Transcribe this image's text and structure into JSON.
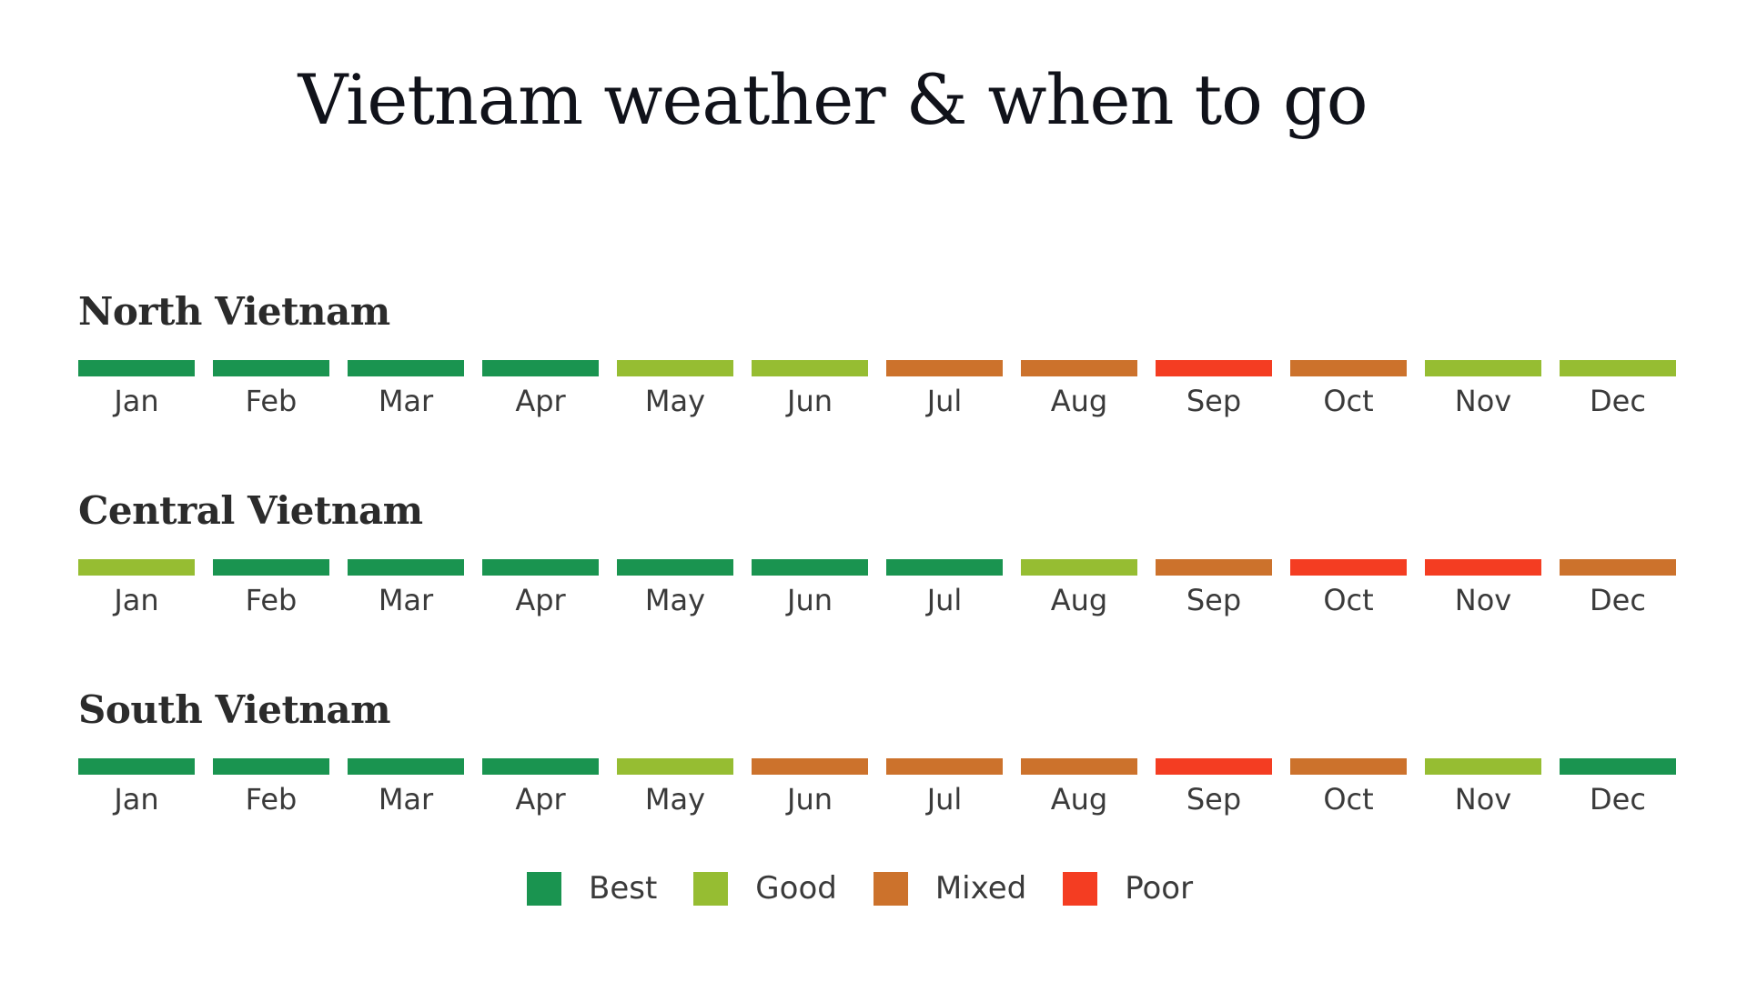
{
  "title": "Vietnam weather & when to go",
  "legend": [
    {
      "key": "best",
      "label": "Best",
      "color": "#1a9450"
    },
    {
      "key": "good",
      "label": "Good",
      "color": "#96bd32"
    },
    {
      "key": "mixed",
      "label": "Mixed",
      "color": "#cc722c"
    },
    {
      "key": "poor",
      "label": "Poor",
      "color": "#f43d22"
    }
  ],
  "colors": {
    "best": "#1a9450",
    "good": "#96bd32",
    "mixed": "#cc722c",
    "poor": "#f43d22"
  },
  "months": [
    "Jan",
    "Feb",
    "Mar",
    "Apr",
    "May",
    "Jun",
    "Jul",
    "Aug",
    "Sep",
    "Oct",
    "Nov",
    "Dec"
  ],
  "regions": [
    {
      "name": "North Vietnam",
      "ratings": [
        "best",
        "best",
        "best",
        "best",
        "good",
        "good",
        "mixed",
        "mixed",
        "poor",
        "mixed",
        "good",
        "good"
      ]
    },
    {
      "name": "Central Vietnam",
      "ratings": [
        "good",
        "best",
        "best",
        "best",
        "best",
        "best",
        "best",
        "good",
        "mixed",
        "poor",
        "poor",
        "mixed"
      ]
    },
    {
      "name": "South Vietnam",
      "ratings": [
        "best",
        "best",
        "best",
        "best",
        "good",
        "mixed",
        "mixed",
        "mixed",
        "poor",
        "mixed",
        "good",
        "best"
      ]
    }
  ],
  "chart_data": {
    "type": "heatmap",
    "title": "Vietnam weather & when to go",
    "x": [
      "Jan",
      "Feb",
      "Mar",
      "Apr",
      "May",
      "Jun",
      "Jul",
      "Aug",
      "Sep",
      "Oct",
      "Nov",
      "Dec"
    ],
    "y": [
      "North Vietnam",
      "Central Vietnam",
      "South Vietnam"
    ],
    "categories_scale": [
      "Best",
      "Good",
      "Mixed",
      "Poor"
    ],
    "values": [
      [
        "Best",
        "Best",
        "Best",
        "Best",
        "Good",
        "Good",
        "Mixed",
        "Mixed",
        "Poor",
        "Mixed",
        "Good",
        "Good"
      ],
      [
        "Good",
        "Best",
        "Best",
        "Best",
        "Best",
        "Best",
        "Best",
        "Good",
        "Mixed",
        "Poor",
        "Poor",
        "Mixed"
      ],
      [
        "Best",
        "Best",
        "Best",
        "Best",
        "Good",
        "Mixed",
        "Mixed",
        "Mixed",
        "Poor",
        "Mixed",
        "Good",
        "Best"
      ]
    ],
    "legend": [
      "Best",
      "Good",
      "Mixed",
      "Poor"
    ],
    "legend_position": "bottom",
    "grid": false
  }
}
